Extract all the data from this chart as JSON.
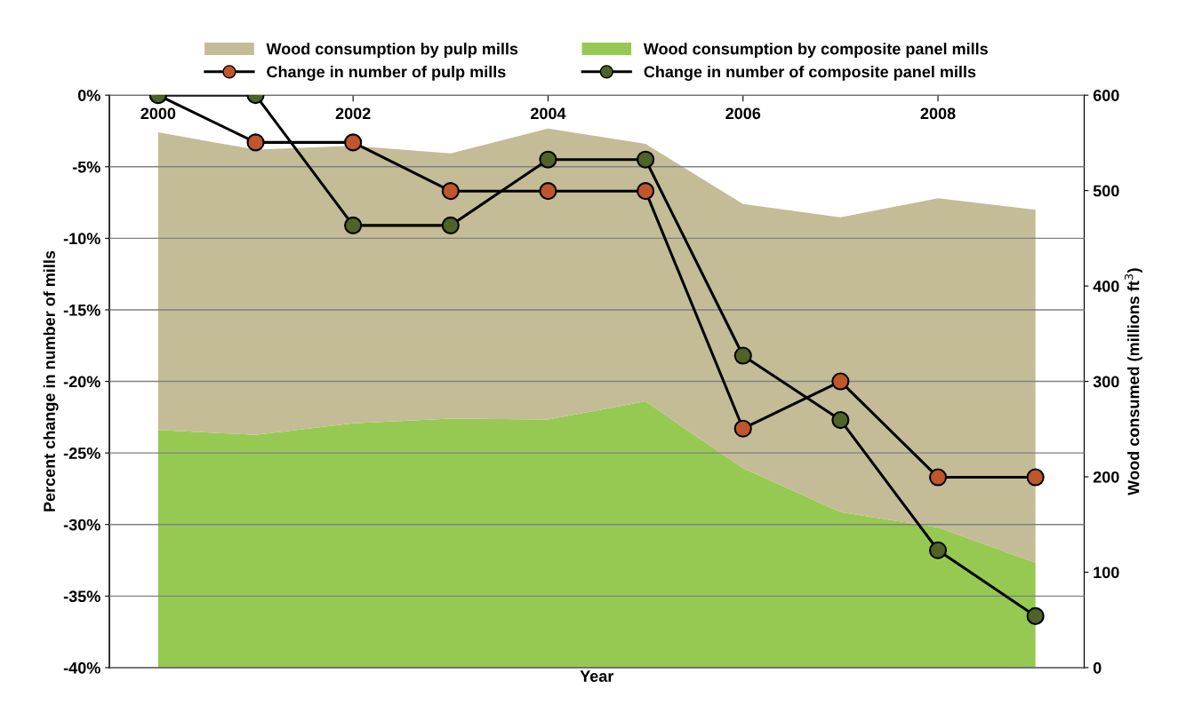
{
  "chart_data": {
    "type": "line",
    "xlabel": "Year",
    "ylabel": "Percent change in number of mills",
    "y2label": "Wood consumed (millions ft$^{3}$)",
    "x": [
      2000,
      2001,
      2002,
      2003,
      2004,
      2005,
      2006,
      2007,
      2008,
      2009
    ],
    "xlim": [
      1999.5,
      2009.5
    ],
    "xticks": [
      2000,
      2002,
      2004,
      2006,
      2008
    ],
    "ylim": [
      -40,
      0
    ],
    "yticks": [
      {
        "value": -40,
        "label": "-40%"
      },
      {
        "value": -35,
        "label": "-35%"
      },
      {
        "value": -30,
        "label": "-30%"
      },
      {
        "value": -25,
        "label": "-25%"
      },
      {
        "value": -20,
        "label": "-20%"
      },
      {
        "value": -15,
        "label": "-15%"
      },
      {
        "value": -10,
        "label": "-10%"
      },
      {
        "value": -5,
        "label": "-5%"
      },
      {
        "value": 0,
        "label": "0%"
      }
    ],
    "y2lim": [
      0,
      600
    ],
    "y2ticks": [
      0,
      100,
      200,
      300,
      400,
      500,
      600
    ],
    "stacked": true,
    "grid": "y",
    "legend": "top",
    "series": [
      {
        "name": "Wood consumption by composite panel mills",
        "type": "area",
        "axis": "y2",
        "color": "#96c952",
        "values": [
          249,
          244,
          256,
          261,
          260,
          279,
          209,
          163,
          147,
          110
        ]
      },
      {
        "name": "Wood consumption by pulp mills",
        "type": "area",
        "axis": "y2",
        "color": "#c4bc96",
        "values": [
          312,
          299,
          291,
          278,
          305,
          270,
          277,
          309,
          345,
          370
        ]
      },
      {
        "name": "Change in number of pulp mills",
        "marker": "circle",
        "color": "#c0562b",
        "values": [
          0,
          -3.3,
          -3.3,
          -6.7,
          -6.7,
          -6.7,
          -23.3,
          -20,
          -26.7,
          -26.7
        ]
      },
      {
        "name": "Change in number of composite panel mills",
        "marker": "circle",
        "color": "#4f6228",
        "values": [
          0,
          0,
          -9.1,
          -9.1,
          -4.5,
          -4.5,
          -18.2,
          -22.7,
          -31.8,
          -36.4
        ]
      }
    ]
  }
}
